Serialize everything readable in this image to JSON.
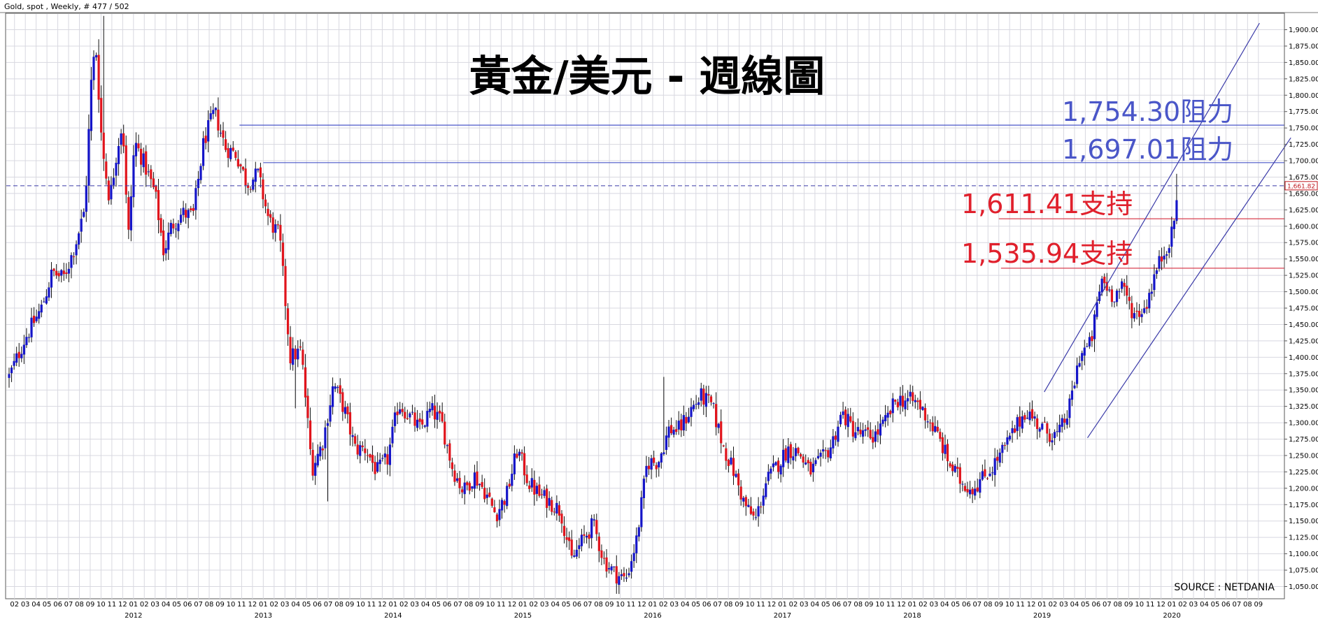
{
  "header": {
    "text": "Gold, spot , Weekly, # 477 / 502"
  },
  "source": "SOURCE : NETDANIA",
  "colors": {
    "up": "#1515c8",
    "down": "#e0141c",
    "resistance": "#4a56c8",
    "support": "#d84050",
    "channel": "#3a3aa8",
    "grid": "#d8d8e0"
  },
  "chart_data": {
    "type": "candlestick",
    "title": "黃金/美元 - 週線圖",
    "ylim": [
      1037.5,
      1912.5
    ],
    "y_ticks": [
      1050,
      1075,
      1100,
      1125,
      1150,
      1175,
      1200,
      1225,
      1250,
      1275,
      1300,
      1325,
      1350,
      1375,
      1400,
      1425,
      1450,
      1475,
      1500,
      1525,
      1550,
      1575,
      1600,
      1625,
      1650,
      1675,
      1700,
      1725,
      1750,
      1775,
      1800,
      1825,
      1850,
      1875,
      1900
    ],
    "y_tick_labels": [
      "1,050.00",
      "1,075.00",
      "1,100.00",
      "1,125.00",
      "1,150.00",
      "1,175.00",
      "1,200.00",
      "1,225.00",
      "1,250.00",
      "1,275.00",
      "1,300.00",
      "1,325.00",
      "1,350.00",
      "1,375.00",
      "1,400.00",
      "1,425.00",
      "1,450.00",
      "1,475.00",
      "1,500.00",
      "1,525.00",
      "1,550.00",
      "1,575.00",
      "1,600.00",
      "1,625.00",
      "1,650.00",
      "1,675.00",
      "1,700.00",
      "1,725.00",
      "1,750.00",
      "1,775.00",
      "1,800.00",
      "1,825.00",
      "1,850.00",
      "1,875.00",
      "1,900.00"
    ],
    "x_start": "2011-02",
    "x_end": "2020-09",
    "month_labels": [
      "02",
      "03",
      "04",
      "05",
      "06",
      "07",
      "08",
      "09",
      "10",
      "11",
      "12",
      "01",
      "02",
      "03",
      "04",
      "05",
      "06",
      "07",
      "08",
      "09",
      "10",
      "11",
      "12",
      "01",
      "02",
      "03",
      "04",
      "05",
      "06",
      "07",
      "08",
      "09",
      "10",
      "11",
      "12",
      "01",
      "02",
      "03",
      "04",
      "05",
      "06",
      "07",
      "08",
      "09",
      "10",
      "11",
      "12",
      "01",
      "02",
      "03",
      "04",
      "05",
      "06",
      "07",
      "08",
      "09",
      "10",
      "11",
      "12",
      "01",
      "02",
      "03",
      "04",
      "05",
      "06",
      "07",
      "08",
      "09",
      "10",
      "11",
      "12",
      "01",
      "02",
      "03",
      "04",
      "05",
      "06",
      "07",
      "08",
      "09",
      "10",
      "11",
      "12",
      "01",
      "02",
      "03",
      "04",
      "05",
      "06",
      "07",
      "08",
      "09",
      "10",
      "11",
      "12",
      "01",
      "02",
      "03",
      "04",
      "05",
      "06",
      "07",
      "08",
      "09",
      "10",
      "11",
      "12",
      "01",
      "02",
      "03",
      "04",
      "05",
      "06",
      "07",
      "08",
      "09"
    ],
    "year_labels": [
      {
        "label": "2012",
        "month_index": 11
      },
      {
        "label": "2013",
        "month_index": 23
      },
      {
        "label": "2014",
        "month_index": 35
      },
      {
        "label": "2015",
        "month_index": 47
      },
      {
        "label": "2016",
        "month_index": 59
      },
      {
        "label": "2017",
        "month_index": 71
      },
      {
        "label": "2018",
        "month_index": 83
      },
      {
        "label": "2019",
        "month_index": 95
      },
      {
        "label": "2020",
        "month_index": 107
      }
    ],
    "last_price": 1661.82,
    "last_price_label": "1,661.82",
    "levels": [
      {
        "value": 1754.3,
        "label": "1,754.30阻力",
        "kind": "resistance",
        "from_month": 21.3
      },
      {
        "value": 1697.01,
        "label": "1,697.01阻力",
        "kind": "resistance",
        "from_month": 23.5
      },
      {
        "value": 1611.41,
        "label": "1,611.41支持",
        "kind": "support",
        "from_month": 91.5
      },
      {
        "value": 1535.94,
        "label": "1,535.94支持",
        "kind": "support",
        "from_month": 91.7
      }
    ],
    "channel_lines": [
      {
        "from": {
          "month": 95.7,
          "value": 1347
        },
        "to": {
          "month": 115.6,
          "value": 1910
        }
      },
      {
        "from": {
          "month": 99.7,
          "value": 1277
        },
        "to": {
          "month": 118.5,
          "value": 1735
        }
      }
    ],
    "anchors": [
      [
        0,
        1370
      ],
      [
        1.5,
        1430
      ],
      [
        3,
        1475
      ],
      [
        4,
        1530
      ],
      [
        5,
        1520
      ],
      [
        6,
        1565
      ],
      [
        7,
        1625
      ],
      [
        7.6,
        1820
      ],
      [
        8.0,
        1880
      ],
      [
        8.6,
        1720
      ],
      [
        9.3,
        1640
      ],
      [
        10.0,
        1720
      ],
      [
        10.5,
        1760
      ],
      [
        11.0,
        1575
      ],
      [
        11.6,
        1730
      ],
      [
        12.5,
        1695
      ],
      [
        13.5,
        1650
      ],
      [
        14.3,
        1560
      ],
      [
        15.0,
        1600
      ],
      [
        16.0,
        1620
      ],
      [
        17.0,
        1615
      ],
      [
        18.0,
        1730
      ],
      [
        19.0,
        1775
      ],
      [
        20.0,
        1720
      ],
      [
        21.0,
        1710
      ],
      [
        22.0,
        1665
      ],
      [
        23.0,
        1680
      ],
      [
        24.0,
        1610
      ],
      [
        25.0,
        1585
      ],
      [
        26.0,
        1400
      ],
      [
        27.0,
        1410
      ],
      [
        28.0,
        1230
      ],
      [
        29.0,
        1270
      ],
      [
        30.0,
        1360
      ],
      [
        31.0,
        1320
      ],
      [
        32.0,
        1260
      ],
      [
        33.0,
        1260
      ],
      [
        34.0,
        1225
      ],
      [
        35.0,
        1245
      ],
      [
        36.0,
        1330
      ],
      [
        37.0,
        1310
      ],
      [
        38.0,
        1290
      ],
      [
        39.0,
        1320
      ],
      [
        40.0,
        1300
      ],
      [
        41.0,
        1230
      ],
      [
        42.0,
        1195
      ],
      [
        43.0,
        1220
      ],
      [
        44.0,
        1195
      ],
      [
        45.0,
        1160
      ],
      [
        46.0,
        1190
      ],
      [
        47.0,
        1260
      ],
      [
        48.0,
        1210
      ],
      [
        49.0,
        1190
      ],
      [
        50.0,
        1180
      ],
      [
        51.0,
        1165
      ],
      [
        52.0,
        1090
      ],
      [
        53.0,
        1120
      ],
      [
        54.0,
        1145
      ],
      [
        55.0,
        1090
      ],
      [
        56.0,
        1070
      ],
      [
        57.0,
        1060
      ],
      [
        58.0,
        1120
      ],
      [
        59.0,
        1240
      ],
      [
        60.0,
        1240
      ],
      [
        61.0,
        1290
      ],
      [
        62.0,
        1290
      ],
      [
        63.0,
        1320
      ],
      [
        64.0,
        1340
      ],
      [
        65.0,
        1325
      ],
      [
        66.0,
        1265
      ],
      [
        67.0,
        1225
      ],
      [
        68.0,
        1175
      ],
      [
        69.0,
        1150
      ],
      [
        70.0,
        1210
      ],
      [
        71.0,
        1235
      ],
      [
        72.0,
        1260
      ],
      [
        73.0,
        1255
      ],
      [
        74.0,
        1225
      ],
      [
        75.0,
        1240
      ],
      [
        76.0,
        1265
      ],
      [
        77.0,
        1315
      ],
      [
        78.0,
        1290
      ],
      [
        79.0,
        1280
      ],
      [
        80.0,
        1280
      ],
      [
        81.0,
        1300
      ],
      [
        82.0,
        1335
      ],
      [
        83.0,
        1335
      ],
      [
        84.0,
        1330
      ],
      [
        85.0,
        1305
      ],
      [
        86.0,
        1275
      ],
      [
        87.0,
        1235
      ],
      [
        88.0,
        1210
      ],
      [
        89.0,
        1200
      ],
      [
        90.0,
        1215
      ],
      [
        91.0,
        1235
      ],
      [
        92.0,
        1260
      ],
      [
        93.0,
        1290
      ],
      [
        94.0,
        1320
      ],
      [
        95.0,
        1300
      ],
      [
        96.0,
        1285
      ],
      [
        97.0,
        1280
      ],
      [
        98.0,
        1320
      ],
      [
        99.0,
        1405
      ],
      [
        100.0,
        1420
      ],
      [
        101.0,
        1520
      ],
      [
        102.0,
        1495
      ],
      [
        103.0,
        1505
      ],
      [
        104.0,
        1465
      ],
      [
        105.0,
        1475
      ],
      [
        106.0,
        1530
      ],
      [
        107.0,
        1570
      ],
      [
        107.6,
        1590
      ],
      [
        108.0,
        1655
      ]
    ],
    "spikes": [
      {
        "month": 8.7,
        "high": 1921
      },
      {
        "month": 26.5,
        "low": 1322
      },
      {
        "month": 29.5,
        "low": 1180
      },
      {
        "month": 60.6,
        "high": 1370
      },
      {
        "month": 107.5,
        "high": 1613
      },
      {
        "month": 108.0,
        "high": 1680
      }
    ],
    "plot_width_months": 117
  }
}
